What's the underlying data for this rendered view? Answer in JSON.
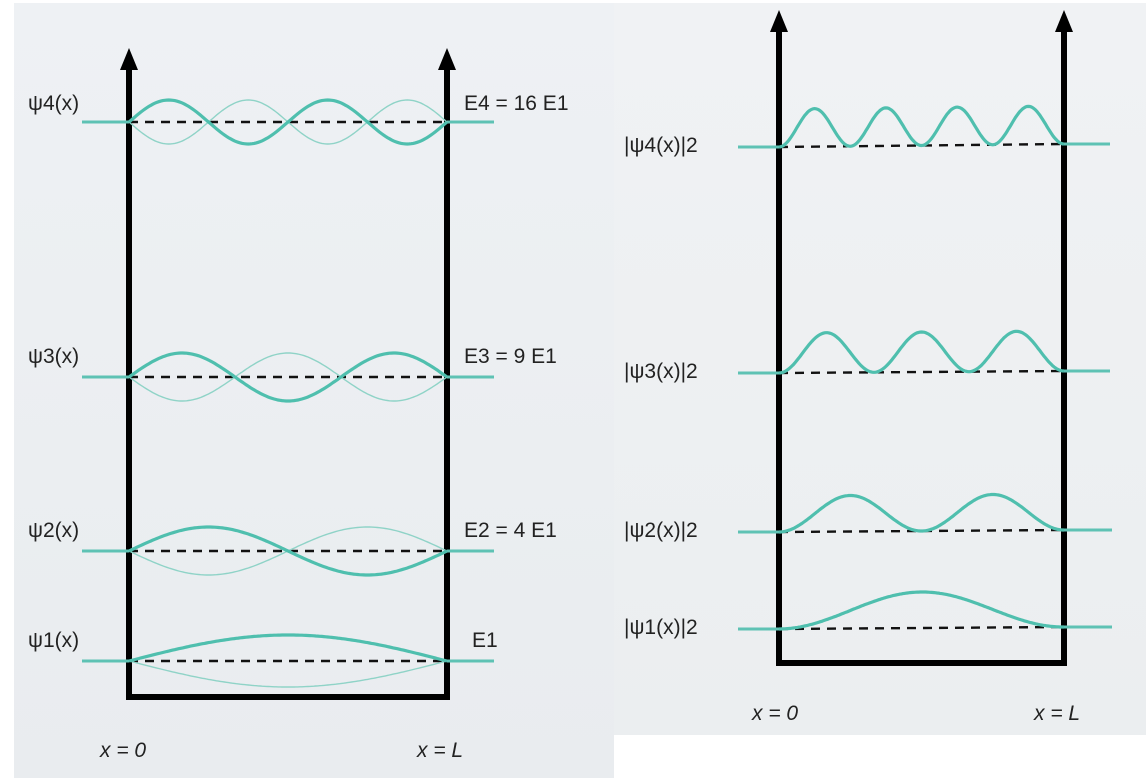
{
  "left_panel": {
    "wavefunction_labels": [
      {
        "n": 4,
        "text": "ψ4(x)"
      },
      {
        "n": 3,
        "text": "ψ3(x)"
      },
      {
        "n": 2,
        "text": "ψ2(x)"
      },
      {
        "n": 1,
        "text": "ψ1(x)"
      }
    ],
    "energy_labels": [
      {
        "n": 4,
        "text": "E4 = 16 E1"
      },
      {
        "n": 3,
        "text": "E3 = 9 E1"
      },
      {
        "n": 2,
        "text": "E2 = 4 E1"
      },
      {
        "n": 1,
        "text": "E1"
      }
    ],
    "x_left": "x = 0",
    "x_right": "x = L"
  },
  "right_panel": {
    "probability_labels": [
      {
        "n": 4,
        "text": "|ψ4(x)|2"
      },
      {
        "n": 3,
        "text": "|ψ3(x)|2"
      },
      {
        "n": 2,
        "text": "|ψ2(x)|2"
      },
      {
        "n": 1,
        "text": "|ψ1(x)|2"
      }
    ],
    "x_left": "x = 0",
    "x_right": "x = L"
  },
  "colors": {
    "wave": "#4fbfae",
    "ghost_wave": "#8fd3c7",
    "wall": "#000000",
    "dashed": "#111111",
    "panel_background": "#eef1f3"
  }
}
